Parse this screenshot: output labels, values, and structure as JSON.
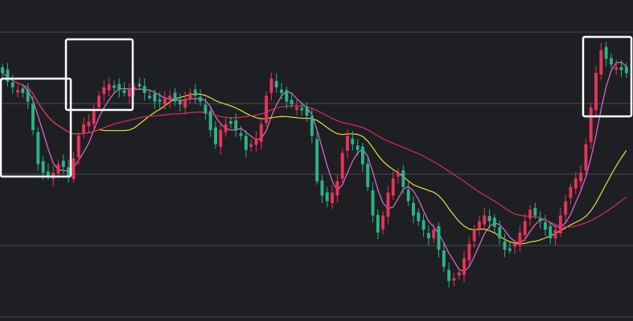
{
  "chart_data": {
    "type": "candlestick",
    "title": "",
    "xlabel": "",
    "ylabel": "",
    "ylim": [
      0,
      100
    ],
    "grid": "horizontal",
    "background": "#1e1f23",
    "grid_color": "#4a4b50",
    "colors": {
      "up": "#e8335a",
      "down": "#2bb38a",
      "ma_short": "#e36bd6",
      "ma_mid": "#e5e03a",
      "ma_long": "#d92a64",
      "highlight_box": "#ffffff"
    },
    "closes": [
      80,
      77,
      75,
      74,
      73,
      70,
      60,
      48,
      45,
      44,
      45,
      48,
      47,
      44,
      50,
      58,
      62,
      63,
      67,
      72,
      75,
      76,
      75,
      74,
      73,
      74,
      75,
      76,
      73,
      72,
      70,
      70,
      71,
      72,
      70,
      69,
      71,
      73,
      72,
      70,
      66,
      60,
      55,
      60,
      62,
      63,
      60,
      58,
      53,
      55,
      57,
      62,
      72,
      78,
      75,
      73,
      70,
      69,
      68,
      67,
      65,
      58,
      42,
      37,
      35,
      38,
      42,
      52,
      58,
      55,
      53,
      48,
      40,
      30,
      24,
      30,
      38,
      43,
      45,
      40,
      35,
      30,
      28,
      25,
      22,
      25,
      18,
      12,
      7,
      8,
      10,
      15,
      20,
      25,
      28,
      30,
      28,
      26,
      22,
      18,
      18,
      20,
      24,
      28,
      32,
      30,
      28,
      25,
      22,
      25,
      30,
      35,
      40,
      43,
      45,
      55,
      68,
      80,
      88,
      85,
      83,
      82,
      81,
      80
    ],
    "moving_averages": [
      {
        "period": 5,
        "role": "ma_short"
      },
      {
        "period": 20,
        "role": "ma_mid"
      },
      {
        "period": 40,
        "role": "ma_long"
      }
    ],
    "annotation_boxes": 3
  }
}
